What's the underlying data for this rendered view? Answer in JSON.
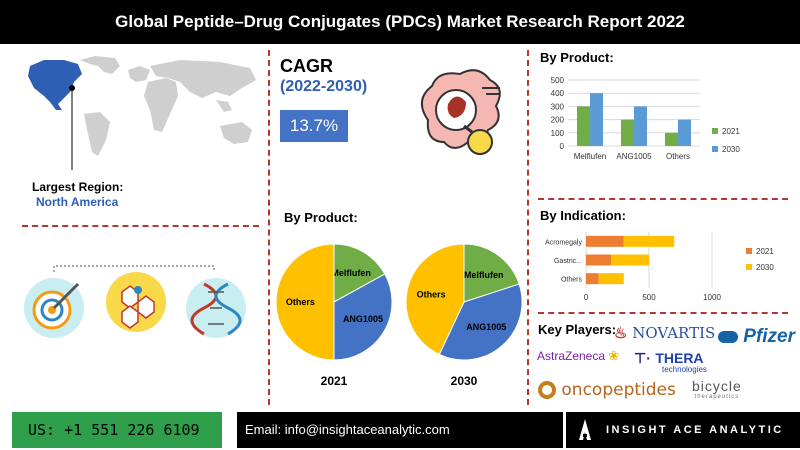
{
  "title": "Global Peptide–Drug Conjugates (PDCs) Market Research Report 2022",
  "region": {
    "label": "Largest Region:",
    "value": "North America"
  },
  "cagr": {
    "label": "CAGR",
    "period": "(2022-2030)",
    "value": "13.7%"
  },
  "pie_section_title": "By Product:",
  "bar_product_title": "By Product:",
  "indication_title": "By Indication:",
  "key_players": {
    "label": "Key Players:",
    "names": [
      "NOVARTIS",
      "Pfizer",
      "AstraZeneca",
      "THERA",
      "technologies",
      "oncopeptides",
      "bicycle",
      "therapeutics"
    ]
  },
  "footer": {
    "phone": "US: +1 551 226 6109",
    "email": "Email: info@insightaceanalytic.com",
    "brand": "INSIGHT ACE ANALYTIC"
  },
  "colors": {
    "y2021": "#ed7d31",
    "y2030": "#5b9bd5",
    "yellow": "#ffc000",
    "green": "#70ad47",
    "blue": "#4472c4",
    "cagr_box": "#4472c4",
    "accent": "#2e5fb5"
  },
  "chart_data": [
    {
      "type": "pie",
      "title": "2021",
      "labels": [
        "Melflufen",
        "ANG1005",
        "Others"
      ],
      "values": [
        17,
        33,
        50
      ],
      "colors": [
        "#70ad47",
        "#4472c4",
        "#ffc000"
      ]
    },
    {
      "type": "pie",
      "title": "2030",
      "labels": [
        "Melflufen",
        "ANG1005",
        "Others"
      ],
      "values": [
        20,
        37,
        43
      ],
      "colors": [
        "#70ad47",
        "#4472c4",
        "#ffc000"
      ]
    },
    {
      "type": "bar",
      "categories": [
        "Melflufen",
        "ANG1005",
        "Others"
      ],
      "series": [
        {
          "name": "2021",
          "values": [
            300,
            200,
            100
          ],
          "color": "#70ad47"
        },
        {
          "name": "2030",
          "values": [
            400,
            300,
            200
          ],
          "color": "#5b9bd5"
        }
      ],
      "ylim": [
        0,
        500
      ],
      "yticks": [
        0,
        100,
        200,
        300,
        400,
        500
      ],
      "legend": "right"
    },
    {
      "type": "bar",
      "orientation": "horizontal",
      "stacked": true,
      "categories": [
        "Acromegaly",
        "Gastric...",
        "Others"
      ],
      "series": [
        {
          "name": "2021",
          "values": [
            300,
            200,
            100
          ],
          "color": "#ed7d31"
        },
        {
          "name": "2030",
          "values": [
            400,
            300,
            200
          ],
          "color": "#ffc000"
        }
      ],
      "xlim": [
        0,
        1000
      ],
      "xticks": [
        0,
        500,
        1000
      ],
      "legend": "right"
    }
  ]
}
